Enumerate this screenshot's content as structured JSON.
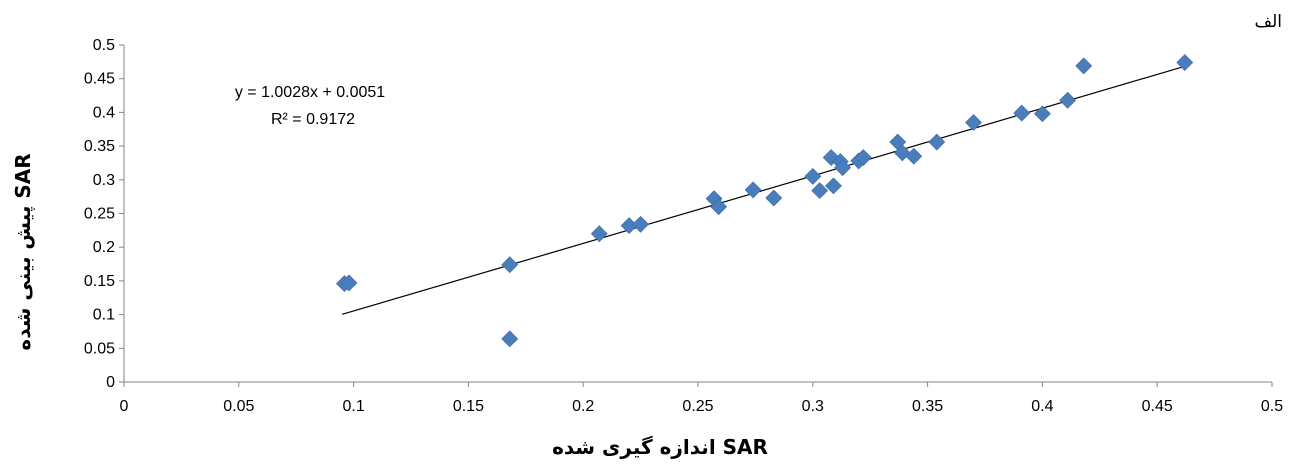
{
  "chart_data": {
    "type": "scatter",
    "corner_label": "الف",
    "xlabel": "اندازه گیری شده SAR",
    "ylabel": "پیش بینی شده SAR",
    "xlim": [
      0,
      0.5
    ],
    "ylim": [
      0,
      0.5
    ],
    "x_ticks": [
      "0",
      "0.05",
      "0.1",
      "0.15",
      "0.2",
      "0.25",
      "0.3",
      "0.35",
      "0.4",
      "0.45",
      "0.5"
    ],
    "y_ticks": [
      "0",
      "0.05",
      "0.1",
      "0.15",
      "0.2",
      "0.25",
      "0.3",
      "0.35",
      "0.4",
      "0.45",
      "0.5"
    ],
    "marker_color": "#4a7ebb",
    "trendline": {
      "slope": 1.0028,
      "intercept": 0.0051,
      "x_range": [
        0.095,
        0.462
      ]
    },
    "equation": "y = 1.0028x + 0.0051",
    "r_squared": "R² = 0.9172",
    "points": [
      [
        0.096,
        0.146
      ],
      [
        0.098,
        0.147
      ],
      [
        0.168,
        0.174
      ],
      [
        0.168,
        0.064
      ],
      [
        0.207,
        0.22
      ],
      [
        0.22,
        0.232
      ],
      [
        0.225,
        0.234
      ],
      [
        0.257,
        0.272
      ],
      [
        0.259,
        0.26
      ],
      [
        0.274,
        0.285
      ],
      [
        0.283,
        0.273
      ],
      [
        0.3,
        0.305
      ],
      [
        0.303,
        0.284
      ],
      [
        0.308,
        0.333
      ],
      [
        0.309,
        0.291
      ],
      [
        0.312,
        0.327
      ],
      [
        0.313,
        0.318
      ],
      [
        0.32,
        0.328
      ],
      [
        0.322,
        0.333
      ],
      [
        0.337,
        0.356
      ],
      [
        0.339,
        0.34
      ],
      [
        0.344,
        0.335
      ],
      [
        0.354,
        0.356
      ],
      [
        0.37,
        0.385
      ],
      [
        0.391,
        0.399
      ],
      [
        0.4,
        0.398
      ],
      [
        0.411,
        0.418
      ],
      [
        0.418,
        0.469
      ],
      [
        0.462,
        0.474
      ]
    ]
  }
}
